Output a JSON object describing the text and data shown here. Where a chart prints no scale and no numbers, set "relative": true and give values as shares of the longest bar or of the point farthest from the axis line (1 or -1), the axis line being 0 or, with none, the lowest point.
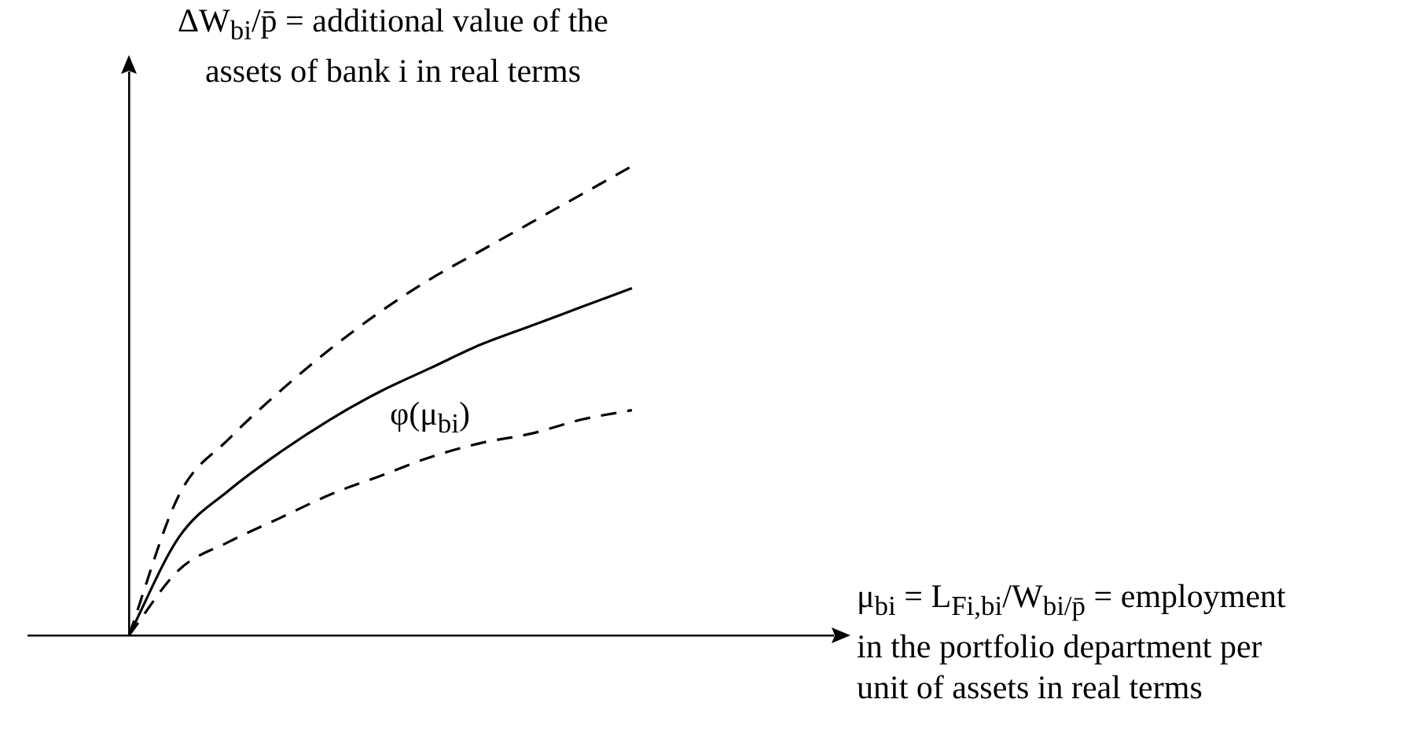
{
  "chart_data": {
    "type": "line",
    "relative": true,
    "ylabel": "ΔW$_{bi}$/p̄ = additional value of the assets of bank i in real terms",
    "xlabel": "μ$_{bi}$ = L$_{Fi,bi}$/W$_{bi/p̄}$ = employment in the portfolio department per unit of assets in real terms",
    "categories": [
      null,
      null,
      null,
      null,
      null,
      null,
      null,
      null,
      null,
      null,
      null,
      null,
      null,
      null,
      null,
      null,
      null
    ],
    "series": [
      {
        "name": "φ(μ$_{bi}$)",
        "color": "#000000",
        "line_style": "solid",
        "values": [
          null,
          null,
          0,
          0.21,
          0.31,
          0.39,
          0.46,
          0.52,
          0.57,
          0.62,
          0.66,
          0.7,
          0.74,
          null,
          null,
          null,
          null
        ]
      },
      {
        "color": "#000000",
        "line_style": "dashed",
        "values": [
          null,
          null,
          0,
          0.3,
          0.42,
          0.52,
          0.61,
          0.69,
          0.76,
          0.82,
          0.88,
          0.94,
          1,
          null,
          null,
          null,
          null
        ]
      },
      {
        "color": "#000000",
        "line_style": "dashed",
        "values": [
          null,
          null,
          0,
          0.14,
          0.2,
          0.25,
          0.3,
          0.34,
          0.38,
          0.41,
          0.43,
          0.46,
          0.48,
          null,
          null,
          null,
          null
        ]
      }
    ]
  }
}
